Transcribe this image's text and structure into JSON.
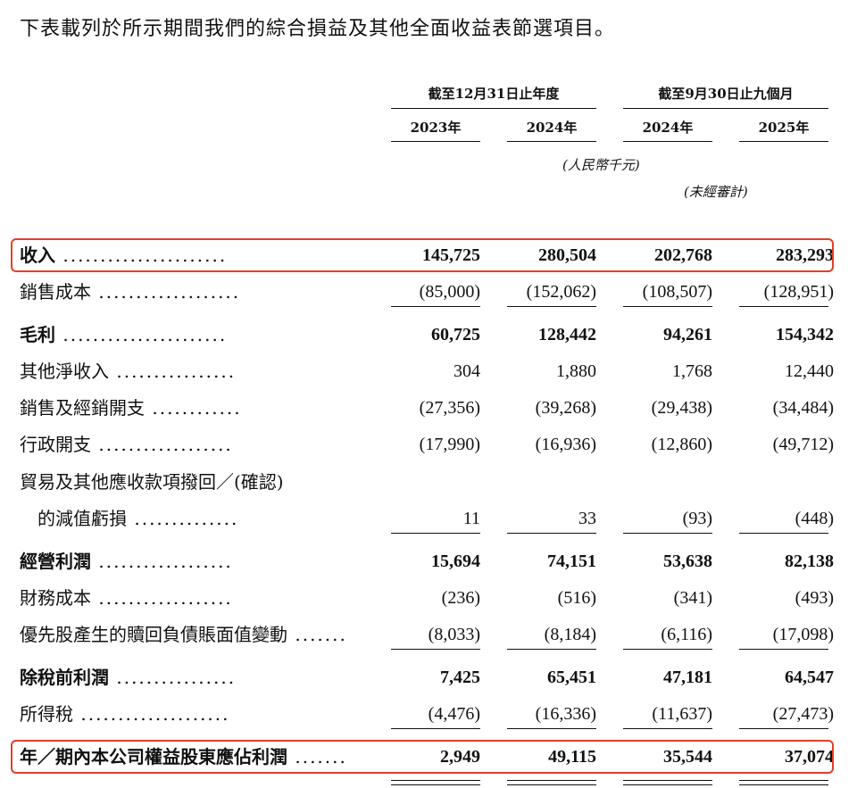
{
  "intro": "下表載列於所示期間我們的綜合損益及其他全面收益表節選項目。",
  "header": {
    "group1": "截至12月31日止年度",
    "group2": "截至9月30日止九個月",
    "years": [
      "2023年",
      "2024年",
      "2024年",
      "2025年"
    ],
    "unit": "(人民幣千元)",
    "unaudited": "(未經審計)"
  },
  "rows": [
    {
      "label": "收入",
      "dots": "......................",
      "bold": true,
      "values": [
        "145,725",
        "280,504",
        "202,768",
        "283,293"
      ],
      "highlight": true
    },
    {
      "label": "銷售成本",
      "dots": "...................",
      "bold": false,
      "values": [
        "(85,000)",
        "(152,062)",
        "(108,507)",
        "(128,951)"
      ]
    },
    {
      "label": "毛利",
      "dots": "......................",
      "bold": true,
      "values": [
        "60,725",
        "128,442",
        "94,261",
        "154,342"
      ]
    },
    {
      "label": "其他淨收入",
      "dots": "................",
      "bold": false,
      "values": [
        "304",
        "1,880",
        "1,768",
        "12,440"
      ]
    },
    {
      "label": "銷售及經銷開支",
      "dots": "............",
      "bold": false,
      "values": [
        "(27,356)",
        "(39,268)",
        "(29,438)",
        "(34,484)"
      ]
    },
    {
      "label": "行政開支",
      "dots": "..................",
      "bold": false,
      "values": [
        "(17,990)",
        "(16,936)",
        "(12,860)",
        "(49,712)"
      ]
    },
    {
      "label": "貿易及其他應收款項撥回／(確認)",
      "dots": "",
      "bold": false,
      "values": [
        "",
        "",
        "",
        ""
      ]
    },
    {
      "label": "　的減值虧損",
      "dots": "..............",
      "bold": false,
      "values": [
        "11",
        "33",
        "(93)",
        "(448)"
      ]
    },
    {
      "label": "經營利潤",
      "dots": "..................",
      "bold": true,
      "values": [
        "15,694",
        "74,151",
        "53,638",
        "82,138"
      ]
    },
    {
      "label": "財務成本",
      "dots": "..................",
      "bold": false,
      "values": [
        "(236)",
        "(516)",
        "(341)",
        "(493)"
      ]
    },
    {
      "label": "優先股產生的贖回負債賬面值變動",
      "dots": ".......",
      "bold": false,
      "values": [
        "(8,033)",
        "(8,184)",
        "(6,116)",
        "(17,098)"
      ]
    },
    {
      "label": "除稅前利潤",
      "dots": "................",
      "bold": true,
      "values": [
        "7,425",
        "65,451",
        "47,181",
        "64,547"
      ]
    },
    {
      "label": "所得稅",
      "dots": "....................",
      "bold": false,
      "values": [
        "(4,476)",
        "(16,336)",
        "(11,637)",
        "(27,473)"
      ]
    },
    {
      "label": "年／期內本公司權益股東應佔利潤",
      "dots": ".......",
      "bold": true,
      "values": [
        "2,949",
        "49,115",
        "35,544",
        "37,074"
      ],
      "highlight": true
    }
  ]
}
